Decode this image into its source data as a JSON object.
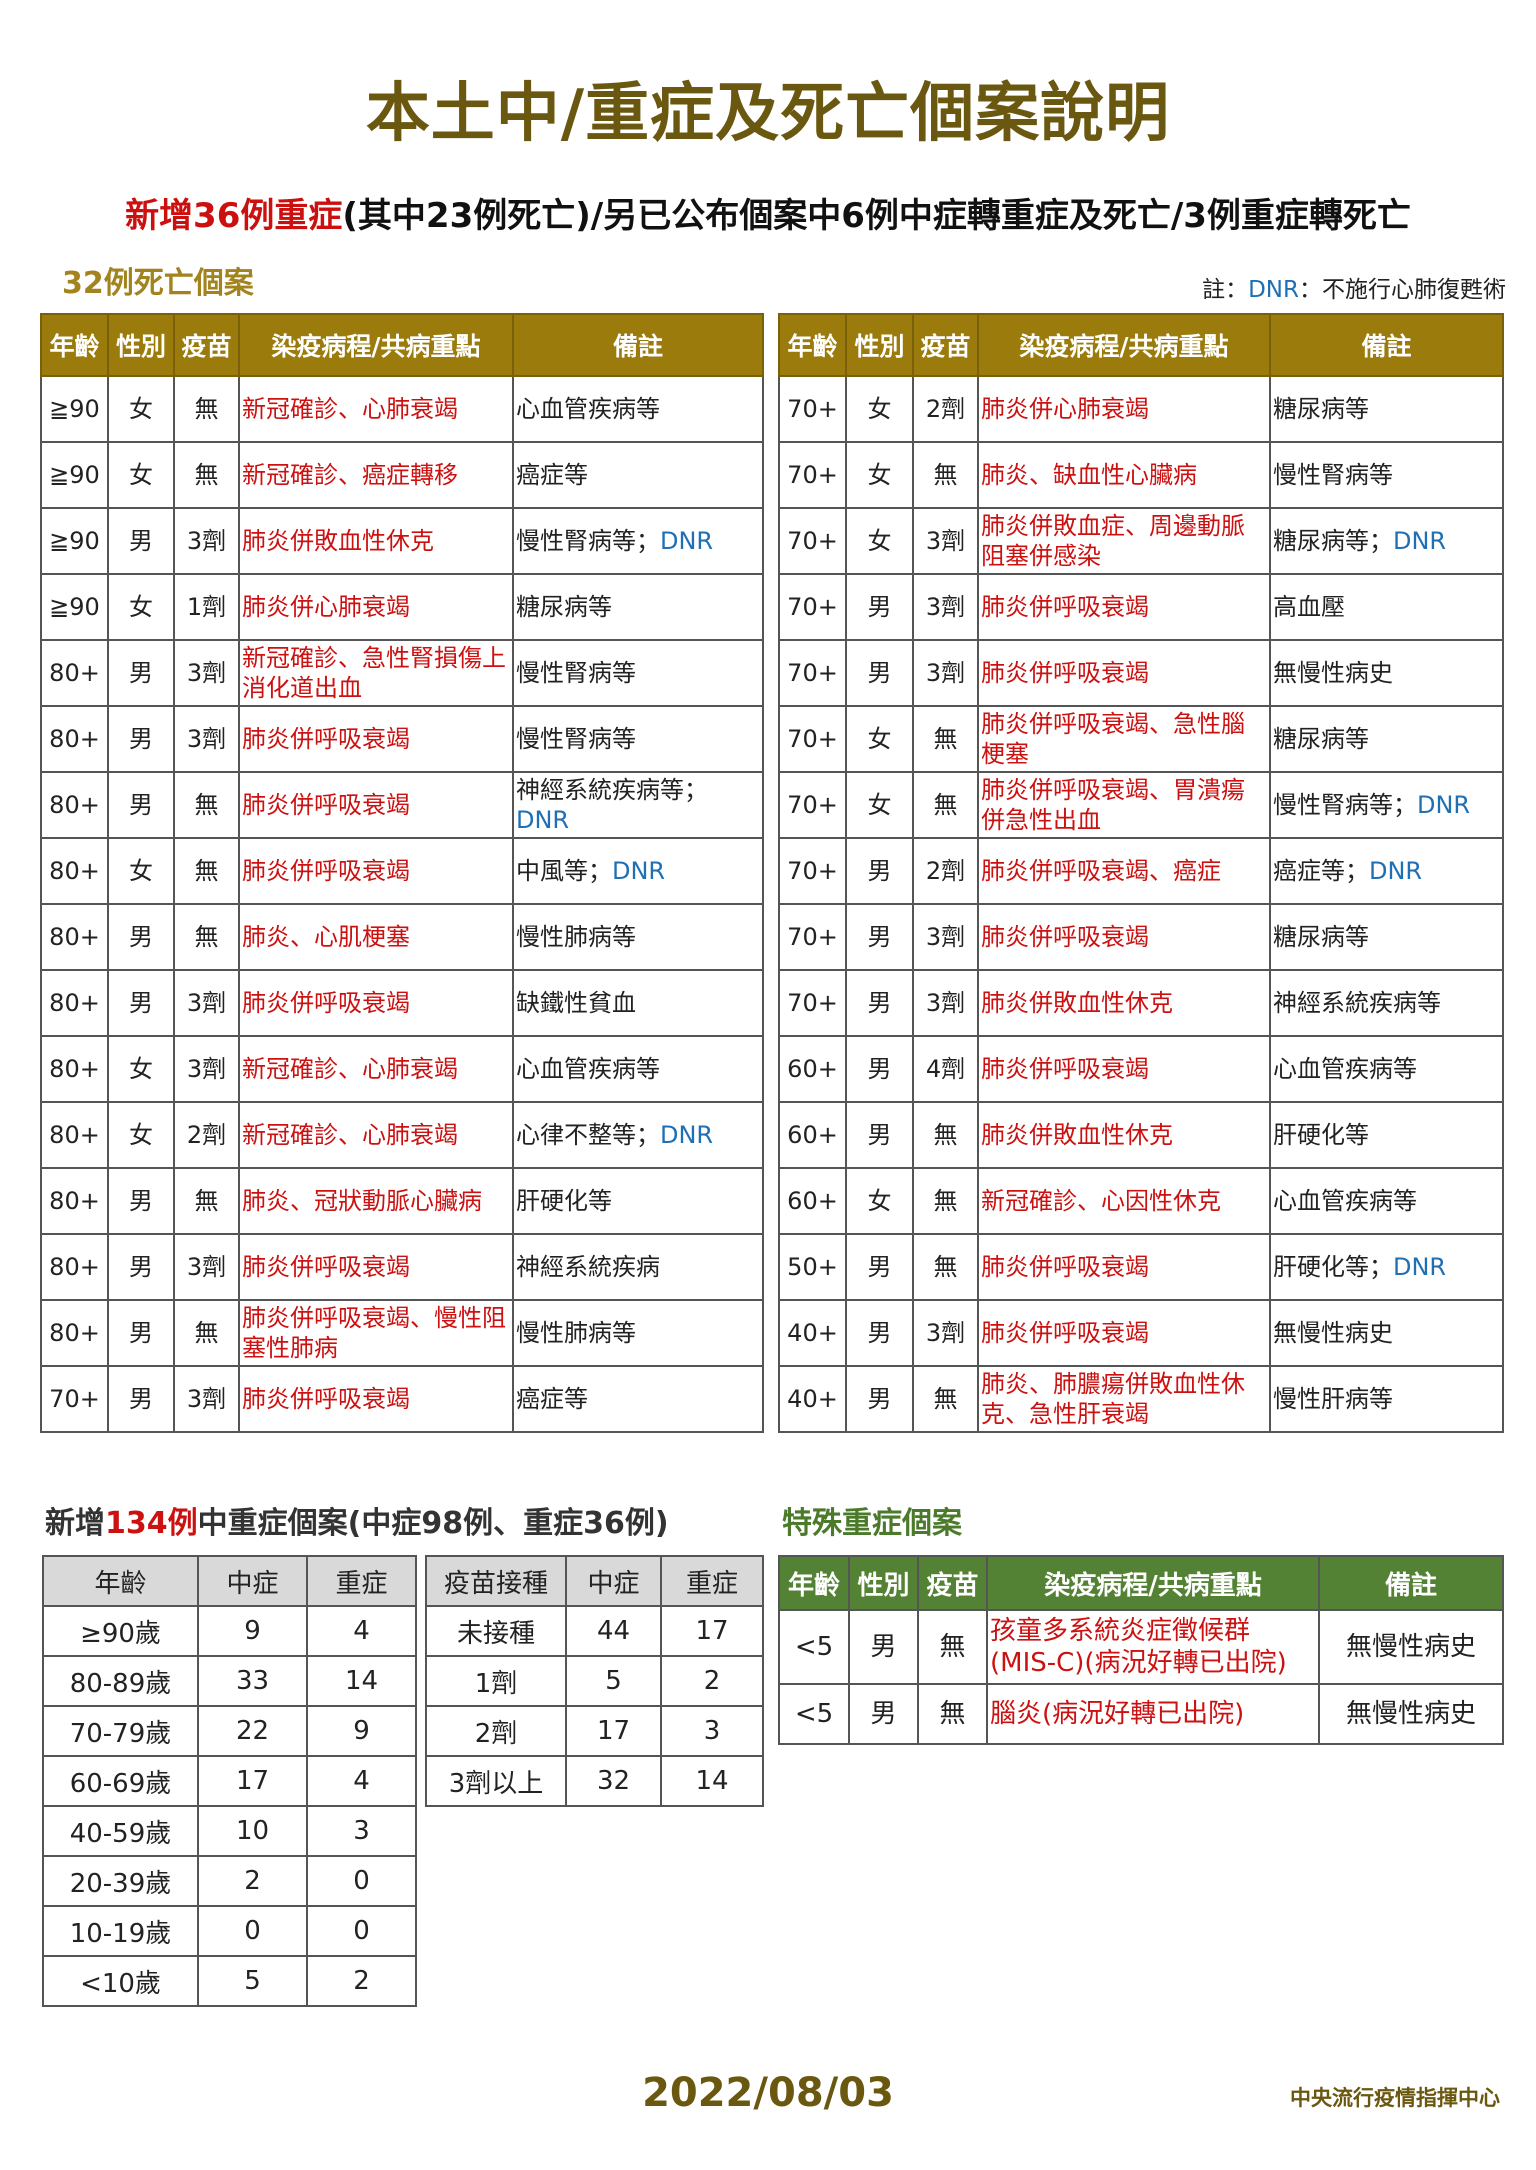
{
  "title": "本土中/重症及死亡個案說明",
  "subtitle": {
    "red": "新增36例重症",
    "rest": "(其中23例死亡)/另已公布個案中6例中症轉重症及死亡/3例重症轉死亡"
  },
  "deaths_heading": "32例死亡個案",
  "note": {
    "prefix": "註：",
    "dnr": "DNR",
    "text": "：不施行心肺復甦術"
  },
  "colors": {
    "title": "#6b5810",
    "death_header": "#9b7b0b",
    "special_header": "#548235",
    "red": "#cc1111",
    "dnr_blue": "#1f6fb5"
  },
  "death_headers": [
    "年齡",
    "性別",
    "疫苗",
    "染疫病程/共病重點",
    "備註"
  ],
  "left_rows": [
    {
      "age": "≧90",
      "sex": "女",
      "vax": "無",
      "course": "新冠確診、心肺衰竭",
      "note": "心血管疾病等",
      "dnr": ""
    },
    {
      "age": "≧90",
      "sex": "女",
      "vax": "無",
      "course": "新冠確診、癌症轉移",
      "note": "癌症等",
      "dnr": ""
    },
    {
      "age": "≧90",
      "sex": "男",
      "vax": "3劑",
      "course": "肺炎併敗血性休克",
      "note": "慢性腎病等；",
      "dnr": "DNR"
    },
    {
      "age": "≧90",
      "sex": "女",
      "vax": "1劑",
      "course": "肺炎併心肺衰竭",
      "note": "糖尿病等",
      "dnr": ""
    },
    {
      "age": "80+",
      "sex": "男",
      "vax": "3劑",
      "course": "新冠確診、急性腎損傷上消化道出血",
      "note": "慢性腎病等",
      "dnr": ""
    },
    {
      "age": "80+",
      "sex": "男",
      "vax": "3劑",
      "course": "肺炎併呼吸衰竭",
      "note": "慢性腎病等",
      "dnr": ""
    },
    {
      "age": "80+",
      "sex": "男",
      "vax": "無",
      "course": "肺炎併呼吸衰竭",
      "note": "神經系統疾病等；",
      "dnr": "DNR"
    },
    {
      "age": "80+",
      "sex": "女",
      "vax": "無",
      "course": "肺炎併呼吸衰竭",
      "note": "中風等；",
      "dnr": "DNR"
    },
    {
      "age": "80+",
      "sex": "男",
      "vax": "無",
      "course": "肺炎、心肌梗塞",
      "note": "慢性肺病等",
      "dnr": ""
    },
    {
      "age": "80+",
      "sex": "男",
      "vax": "3劑",
      "course": "肺炎併呼吸衰竭",
      "note": "缺鐵性貧血",
      "dnr": ""
    },
    {
      "age": "80+",
      "sex": "女",
      "vax": "3劑",
      "course": "新冠確診、心肺衰竭",
      "note": "心血管疾病等",
      "dnr": ""
    },
    {
      "age": "80+",
      "sex": "女",
      "vax": "2劑",
      "course": "新冠確診、心肺衰竭",
      "note": "心律不整等；",
      "dnr": "DNR"
    },
    {
      "age": "80+",
      "sex": "男",
      "vax": "無",
      "course": "肺炎、冠狀動脈心臟病",
      "note": "肝硬化等",
      "dnr": ""
    },
    {
      "age": "80+",
      "sex": "男",
      "vax": "3劑",
      "course": "肺炎併呼吸衰竭",
      "note": "神經系統疾病",
      "dnr": ""
    },
    {
      "age": "80+",
      "sex": "男",
      "vax": "無",
      "course": "肺炎併呼吸衰竭、慢性阻塞性肺病",
      "note": "慢性肺病等",
      "dnr": ""
    },
    {
      "age": "70+",
      "sex": "男",
      "vax": "3劑",
      "course": "肺炎併呼吸衰竭",
      "note": "癌症等",
      "dnr": ""
    }
  ],
  "right_rows": [
    {
      "age": "70+",
      "sex": "女",
      "vax": "2劑",
      "course": "肺炎併心肺衰竭",
      "note": "糖尿病等",
      "dnr": ""
    },
    {
      "age": "70+",
      "sex": "女",
      "vax": "無",
      "course": "肺炎、缺血性心臟病",
      "note": "慢性腎病等",
      "dnr": ""
    },
    {
      "age": "70+",
      "sex": "女",
      "vax": "3劑",
      "course": "肺炎併敗血症、周邊動脈阻塞併感染",
      "note": "糖尿病等；",
      "dnr": "DNR"
    },
    {
      "age": "70+",
      "sex": "男",
      "vax": "3劑",
      "course": "肺炎併呼吸衰竭",
      "note": "高血壓",
      "dnr": ""
    },
    {
      "age": "70+",
      "sex": "男",
      "vax": "3劑",
      "course": "肺炎併呼吸衰竭",
      "note": "無慢性病史",
      "dnr": ""
    },
    {
      "age": "70+",
      "sex": "女",
      "vax": "無",
      "course": "肺炎併呼吸衰竭、急性腦梗塞",
      "note": "糖尿病等",
      "dnr": ""
    },
    {
      "age": "70+",
      "sex": "女",
      "vax": "無",
      "course": "肺炎併呼吸衰竭、胃潰瘍併急性出血",
      "note": "慢性腎病等；",
      "dnr": "DNR"
    },
    {
      "age": "70+",
      "sex": "男",
      "vax": "2劑",
      "course": "肺炎併呼吸衰竭、癌症",
      "note": "癌症等；",
      "dnr": "DNR"
    },
    {
      "age": "70+",
      "sex": "男",
      "vax": "3劑",
      "course": "肺炎併呼吸衰竭",
      "note": "糖尿病等",
      "dnr": ""
    },
    {
      "age": "70+",
      "sex": "男",
      "vax": "3劑",
      "course": "肺炎併敗血性休克",
      "note": "神經系統疾病等",
      "dnr": ""
    },
    {
      "age": "60+",
      "sex": "男",
      "vax": "4劑",
      "course": "肺炎併呼吸衰竭",
      "note": "心血管疾病等",
      "dnr": ""
    },
    {
      "age": "60+",
      "sex": "男",
      "vax": "無",
      "course": "肺炎併敗血性休克",
      "note": "肝硬化等",
      "dnr": ""
    },
    {
      "age": "60+",
      "sex": "女",
      "vax": "無",
      "course": "新冠確診、心因性休克",
      "note": "心血管疾病等",
      "dnr": ""
    },
    {
      "age": "50+",
      "sex": "男",
      "vax": "無",
      "course": "肺炎併呼吸衰竭",
      "note": "肝硬化等；",
      "dnr": "DNR"
    },
    {
      "age": "40+",
      "sex": "男",
      "vax": "3劑",
      "course": "肺炎併呼吸衰竭",
      "note": "無慢性病史",
      "dnr": ""
    },
    {
      "age": "40+",
      "sex": "男",
      "vax": "無",
      "course": "肺炎、肺膿瘍併敗血性休克、急性肝衰竭",
      "note": "慢性肝病等",
      "dnr": ""
    }
  ],
  "stats_heading": {
    "prefix": "新增",
    "red": "134例",
    "rest": "中重症個案(中症98例、重症36例)"
  },
  "age_table": {
    "headers": [
      "年齡",
      "中症",
      "重症"
    ],
    "rows": [
      [
        "≥90歲",
        "9",
        "4"
      ],
      [
        "80-89歲",
        "33",
        "14"
      ],
      [
        "70-79歲",
        "22",
        "9"
      ],
      [
        "60-69歲",
        "17",
        "4"
      ],
      [
        "40-59歲",
        "10",
        "3"
      ],
      [
        "20-39歲",
        "2",
        "0"
      ],
      [
        "10-19歲",
        "0",
        "0"
      ],
      [
        "<10歲",
        "5",
        "2"
      ]
    ]
  },
  "vax_table": {
    "headers": [
      "疫苗接種",
      "中症",
      "重症"
    ],
    "rows": [
      [
        "未接種",
        "44",
        "17"
      ],
      [
        "1劑",
        "5",
        "2"
      ],
      [
        "2劑",
        "17",
        "3"
      ],
      [
        "3劑以上",
        "32",
        "14"
      ]
    ]
  },
  "special_heading": "特殊重症個案",
  "special_table": {
    "headers": [
      "年齡",
      "性別",
      "疫苗",
      "染疫病程/共病重點",
      "備註"
    ],
    "rows": [
      {
        "age": "<5",
        "sex": "男",
        "vax": "無",
        "course": "孩童多系統炎症徵候群(MIS-C)(病況好轉已出院)",
        "note": "無慢性病史"
      },
      {
        "age": "<5",
        "sex": "男",
        "vax": "無",
        "course": "腦炎(病況好轉已出院)",
        "note": "無慢性病史"
      }
    ]
  },
  "footer": {
    "date": "2022/08/03",
    "agency": "中央流行疫情指揮中心"
  }
}
